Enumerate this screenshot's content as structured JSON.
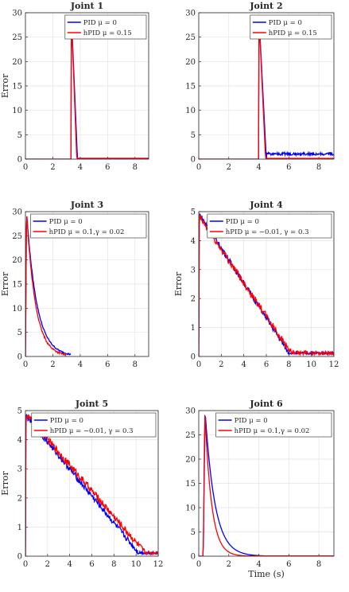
{
  "chart_data": [
    {
      "type": "line",
      "title": "Joint 1",
      "ylabel": "Error",
      "xlabel": "",
      "xlim": [
        0,
        9
      ],
      "ylim": [
        0,
        30
      ],
      "xticks": [
        "0",
        "2",
        "4",
        "6",
        "8"
      ],
      "yticks": [
        "0",
        "5",
        "10",
        "15",
        "20",
        "25",
        "30"
      ],
      "grid": true,
      "legend": "top-right",
      "series": [
        {
          "name": "PID μ = 0",
          "color": "#0000ff",
          "kind": "spike",
          "start": 3.35,
          "end": 3.8,
          "peak": 30,
          "tail": 0.15,
          "noise": 0
        },
        {
          "name": "hPID μ = 0.15",
          "color": "#ff0000",
          "kind": "spike",
          "start": 3.35,
          "end": 3.75,
          "peak": 30,
          "tail": 0.15,
          "noise": 0
        }
      ]
    },
    {
      "type": "line",
      "title": "Joint 2",
      "ylabel": "",
      "xlabel": "",
      "xlim": [
        0,
        9
      ],
      "ylim": [
        0,
        30
      ],
      "xticks": [
        "0",
        "2",
        "4",
        "6",
        "8"
      ],
      "yticks": [
        "0",
        "5",
        "10",
        "15",
        "20",
        "25",
        "30"
      ],
      "grid": true,
      "legend": "top-right",
      "series": [
        {
          "name": "PID μ = 0",
          "color": "#0000ff",
          "kind": "spike",
          "start": 4.0,
          "end": 4.5,
          "peak": 30,
          "tail": 0.8,
          "noise": 0.6
        },
        {
          "name": "hPID μ = 0.15",
          "color": "#ff0000",
          "kind": "spike",
          "start": 4.0,
          "end": 4.45,
          "peak": 30,
          "tail": 0.15,
          "noise": 0
        }
      ]
    },
    {
      "type": "line",
      "title": "Joint 3",
      "ylabel": "Error",
      "xlabel": "",
      "xlim": [
        0,
        9
      ],
      "ylim": [
        0,
        30
      ],
      "xticks": [
        "0",
        "2",
        "4",
        "6",
        "8"
      ],
      "yticks": [
        "0",
        "5",
        "10",
        "15",
        "20",
        "25",
        "30"
      ],
      "grid": true,
      "legend": "top-right",
      "series": [
        {
          "name": "PID μ = 0",
          "color": "#0000ff",
          "kind": "decay",
          "start": 0.0,
          "rise": 0.08,
          "peak": 30,
          "tau": 0.75,
          "end": 3.3,
          "noise": 0.3
        },
        {
          "name": "hPID μ = 0.1,γ = 0.02",
          "color": "#ff0000",
          "kind": "decay",
          "start": 0.0,
          "rise": 0.08,
          "peak": 30,
          "tau": 0.65,
          "end": 3.0,
          "noise": 0.4
        }
      ]
    },
    {
      "type": "line",
      "title": "Joint 4",
      "ylabel": "Error",
      "xlabel": "",
      "xlim": [
        0,
        12
      ],
      "ylim": [
        0,
        5
      ],
      "xticks": [
        "0",
        "2",
        "4",
        "6",
        "8",
        "10",
        "12"
      ],
      "yticks": [
        "0",
        "1",
        "2",
        "3",
        "4",
        "5"
      ],
      "grid": true,
      "legend": "top-right",
      "series": [
        {
          "name": "PID μ = 0",
          "color": "#0000ff",
          "kind": "linear",
          "start": 0.0,
          "peak": 4.95,
          "slope_end": 8.0,
          "tail": 0.12,
          "noise": 0.09
        },
        {
          "name": "hPID μ = −0.01, γ = 0.3",
          "color": "#ff0000",
          "kind": "linear",
          "start": 0.0,
          "peak": 4.85,
          "slope_end": 8.2,
          "tail": 0.12,
          "noise": 0.12
        }
      ]
    },
    {
      "type": "line",
      "title": "Joint 5",
      "ylabel": "Error",
      "xlabel": "",
      "xlim": [
        0,
        12
      ],
      "ylim": [
        0,
        5
      ],
      "xticks": [
        "0",
        "2",
        "4",
        "6",
        "8",
        "10",
        "12"
      ],
      "yticks": [
        "0",
        "1",
        "2",
        "3",
        "4",
        "5"
      ],
      "grid": true,
      "legend": "top-right",
      "series": [
        {
          "name": "PID μ = 0",
          "color": "#0000ff",
          "kind": "linear",
          "start": 0.0,
          "peak": 4.85,
          "slope_end": 10.2,
          "tail": 0.12,
          "noise": 0.1
        },
        {
          "name": "hPID μ = −0.01, γ = 0.3",
          "color": "#ff0000",
          "kind": "linear",
          "start": 0.0,
          "peak": 4.9,
          "slope_end": 10.8,
          "tail": 0.12,
          "noise": 0.12
        }
      ]
    },
    {
      "type": "line",
      "title": "Joint 6",
      "ylabel": "",
      "xlabel": "Time (s)",
      "xlim": [
        0,
        9
      ],
      "ylim": [
        0,
        30
      ],
      "xticks": [
        "0",
        "2",
        "4",
        "6",
        "8"
      ],
      "yticks": [
        "0",
        "5",
        "10",
        "15",
        "20",
        "25",
        "30"
      ],
      "grid": true,
      "legend": "top-right",
      "series": [
        {
          "name": "PID μ = 0",
          "color": "#0000ff",
          "kind": "decay",
          "start": 0.3,
          "rise": 0.12,
          "peak": 30,
          "tau": 0.65,
          "end": 9.0,
          "noise": 0
        },
        {
          "name": "hPID μ = 0.1,γ = 0.02",
          "color": "#ff0000",
          "kind": "decay",
          "start": 0.3,
          "rise": 0.1,
          "peak": 30,
          "tau": 0.45,
          "end": 9.0,
          "noise": 0
        }
      ]
    }
  ]
}
